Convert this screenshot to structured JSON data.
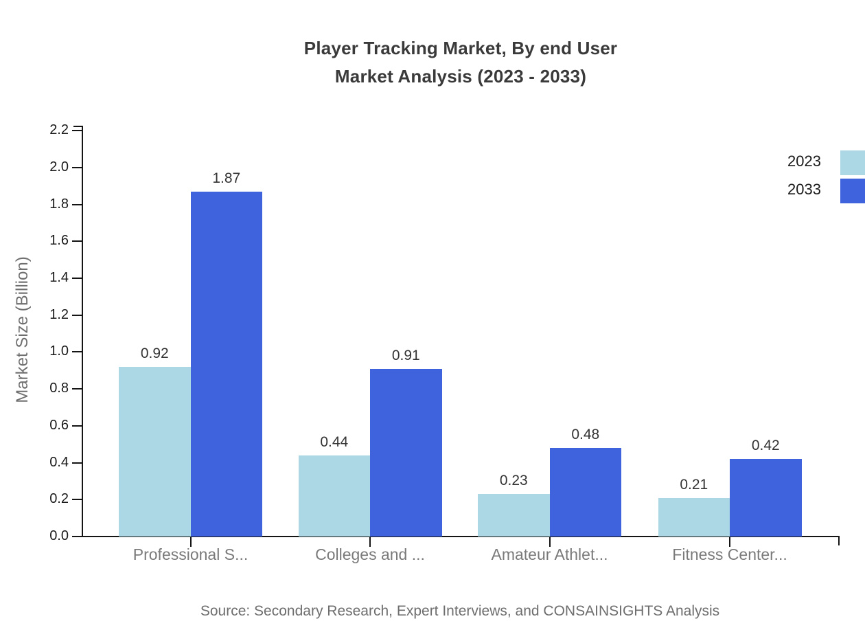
{
  "page": {
    "title_line1": "Player Tracking Market, By end User",
    "title_line2": "Market Analysis (2023 - 2033)",
    "source": "Source: Secondary Research, Expert Interviews, and CONSAINSIGHTS Analysis"
  },
  "chart_data": {
    "type": "bar",
    "title": "Player Tracking Market, By end User Market Analysis (2023 - 2033)",
    "categories": [
      "Professional S...",
      "Colleges and ...",
      "Amateur Athlet...",
      "Fitness Center..."
    ],
    "series": [
      {
        "name": "2023",
        "color": "#ACD8E5",
        "values": [
          0.92,
          0.44,
          0.23,
          0.21
        ]
      },
      {
        "name": "2033",
        "color": "#3E63DC",
        "values": [
          1.87,
          0.91,
          0.48,
          0.42
        ]
      }
    ],
    "xlabel": "",
    "ylabel": "Market Size (Billion)",
    "ylim": [
      0.0,
      2.2
    ],
    "ytick_step": 0.2,
    "yticks": [
      "0.0",
      "0.2",
      "0.4",
      "0.6",
      "0.8",
      "1.0",
      "1.2",
      "1.4",
      "1.6",
      "1.8",
      "2.0",
      "2.2"
    ],
    "grid": false,
    "legend_position": "top-right",
    "value_labels_shown": true,
    "colors": {
      "axis": "#141414",
      "title_text": "#3A3A3A",
      "tick_text": "#1A1A1A",
      "category_text": "#7A7A7A",
      "value_text": "#333333",
      "ylabel_text": "#6F6F6F",
      "source_text": "#6E6E6E",
      "background": "#FFFFFF"
    }
  }
}
